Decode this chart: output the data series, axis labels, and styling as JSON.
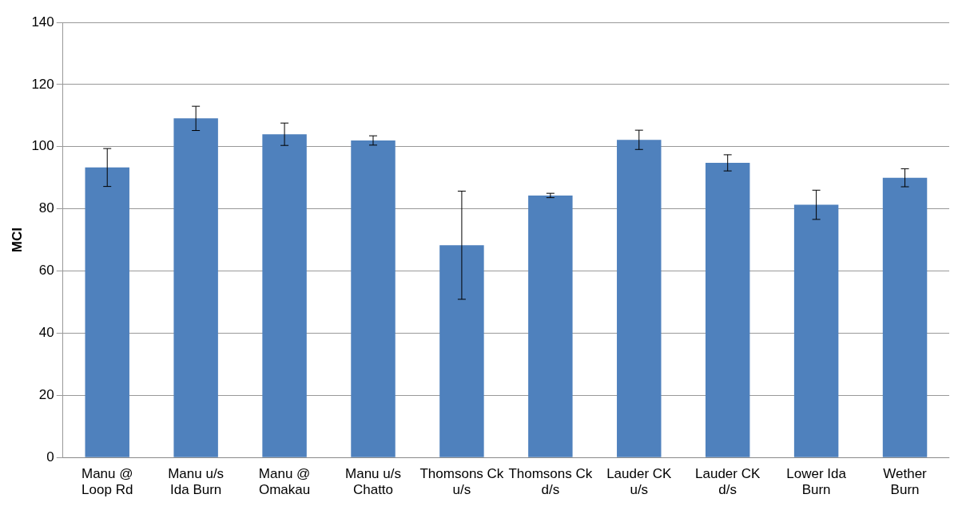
{
  "chart_data": {
    "type": "bar",
    "ylabel": "MCI",
    "categories": [
      "Manu @ Loop Rd",
      "Manu u/s Ida Burn",
      "Manu @ Omakau",
      "Manu u/s Chatto",
      "Thomsons Ck u/s",
      "Thomsons Ck d/s",
      "Lauder CK u/s",
      "Lauder CK d/s",
      "Lower Ida Burn",
      "Wether Burn"
    ],
    "values": [
      93.3,
      109.1,
      104,
      102,
      68.3,
      84.3,
      102.2,
      94.8,
      81.3,
      90
    ],
    "errors": [
      6.1,
      3.9,
      3.6,
      1.5,
      17.4,
      0.7,
      3.1,
      2.6,
      4.7,
      2.9
    ],
    "color": "#4f81bd",
    "ylim": [
      0,
      140
    ],
    "yticks": [
      0,
      20,
      40,
      60,
      80,
      100,
      120,
      140
    ],
    "grid": "y"
  }
}
